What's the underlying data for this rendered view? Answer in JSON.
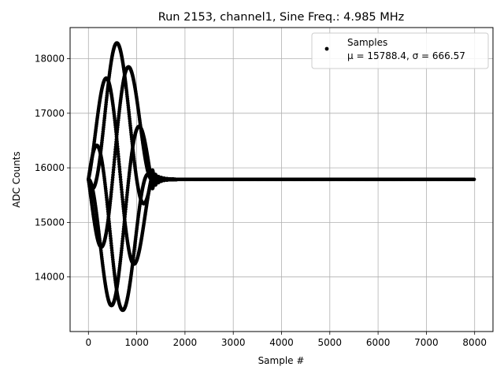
{
  "chart_data": {
    "type": "scatter",
    "title": "Run 2153, channel1, Sine Freq.: 4.985 MHz",
    "xlabel": "Sample #",
    "ylabel": "ADC Counts",
    "xlim": [
      -380,
      8380
    ],
    "ylim": [
      13000,
      18570
    ],
    "xticks": [
      0,
      1000,
      2000,
      3000,
      4000,
      5000,
      6000,
      7000,
      8000
    ],
    "yticks": [
      14000,
      15000,
      16000,
      17000,
      18000
    ],
    "grid": true,
    "legend_position": "upper right",
    "series": [
      {
        "name": "Samples",
        "stats_label": "μ = 15788.4, σ = 666.57",
        "color": "#000000",
        "marker": "dot",
        "signal": {
          "n_samples": 8000,
          "baseline": 15788,
          "sine_frequency_mhz": 4.985,
          "envelope_peak_amplitude": 2500,
          "envelope_rise_start": 0,
          "envelope_peak_sample": 600,
          "envelope_fall_end": 1300,
          "ringing_end": 1800
        }
      }
    ]
  }
}
